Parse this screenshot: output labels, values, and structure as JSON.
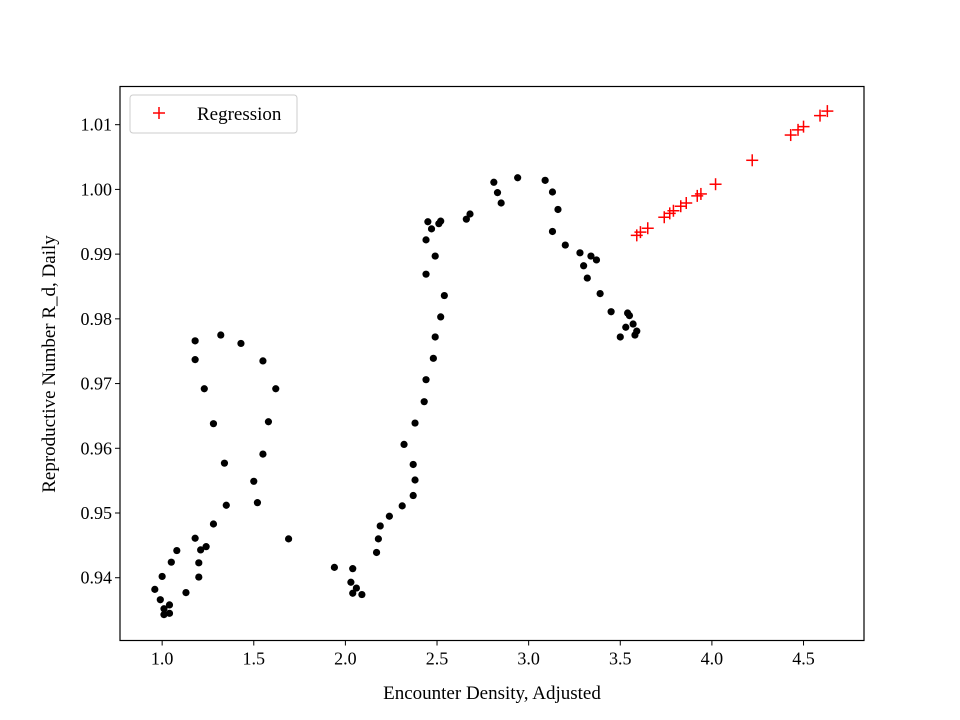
{
  "chart_data": {
    "type": "scatter",
    "xlabel": "Encounter Density, Adjusted",
    "ylabel": "Reproductive Number R_d, Daily",
    "xlim": [
      0.77,
      4.83
    ],
    "ylim": [
      0.9303,
      1.0159
    ],
    "x_ticks": [
      1.0,
      1.5,
      2.0,
      2.5,
      3.0,
      3.5,
      4.0,
      4.5
    ],
    "x_tick_labels": [
      "1.0",
      "1.5",
      "2.0",
      "2.5",
      "3.0",
      "3.5",
      "4.0",
      "4.5"
    ],
    "y_ticks": [
      0.94,
      0.95,
      0.96,
      0.97,
      0.98,
      0.99,
      1.0,
      1.01
    ],
    "y_tick_labels": [
      "0.94",
      "0.95",
      "0.96",
      "0.97",
      "0.98",
      "0.99",
      "1.00",
      "1.01"
    ],
    "grid": false,
    "legend_position": "top-left",
    "series": [
      {
        "marker": "dot",
        "color": "#000000",
        "points": [
          [
            0.96,
            0.9382
          ],
          [
            1.0,
            0.9402
          ],
          [
            0.99,
            0.9366
          ],
          [
            1.01,
            0.9352
          ],
          [
            1.01,
            0.9343
          ],
          [
            1.04,
            0.9345
          ],
          [
            1.04,
            0.9358
          ],
          [
            1.05,
            0.9424
          ],
          [
            1.08,
            0.9442
          ],
          [
            1.13,
            0.9377
          ],
          [
            1.18,
            0.9461
          ],
          [
            1.2,
            0.9401
          ],
          [
            1.2,
            0.9423
          ],
          [
            1.21,
            0.9443
          ],
          [
            1.24,
            0.9448
          ],
          [
            1.28,
            0.9483
          ],
          [
            1.34,
            0.9577
          ],
          [
            1.35,
            0.9512
          ],
          [
            1.28,
            0.9638
          ],
          [
            1.23,
            0.9692
          ],
          [
            1.18,
            0.9737
          ],
          [
            1.18,
            0.9766
          ],
          [
            1.32,
            0.9775
          ],
          [
            1.43,
            0.9762
          ],
          [
            1.5,
            0.9549
          ],
          [
            1.52,
            0.9516
          ],
          [
            1.55,
            0.9591
          ],
          [
            1.55,
            0.9735
          ],
          [
            1.58,
            0.9641
          ],
          [
            1.62,
            0.9692
          ],
          [
            1.69,
            0.946
          ],
          [
            1.94,
            0.9416
          ],
          [
            2.03,
            0.9393
          ],
          [
            2.04,
            0.9414
          ],
          [
            2.04,
            0.9376
          ],
          [
            2.06,
            0.9384
          ],
          [
            2.09,
            0.9374
          ],
          [
            2.17,
            0.9439
          ],
          [
            2.18,
            0.946
          ],
          [
            2.19,
            0.948
          ],
          [
            2.24,
            0.9495
          ],
          [
            2.31,
            0.9511
          ],
          [
            2.32,
            0.9606
          ],
          [
            2.37,
            0.9527
          ],
          [
            2.37,
            0.9575
          ],
          [
            2.38,
            0.9551
          ],
          [
            2.38,
            0.9639
          ],
          [
            2.43,
            0.9672
          ],
          [
            2.44,
            0.9706
          ],
          [
            2.48,
            0.9739
          ],
          [
            2.49,
            0.9772
          ],
          [
            2.52,
            0.9803
          ],
          [
            2.54,
            0.9836
          ],
          [
            2.44,
            0.9869
          ],
          [
            2.49,
            0.9897
          ],
          [
            2.44,
            0.9922
          ],
          [
            2.47,
            0.9939
          ],
          [
            2.45,
            0.995
          ],
          [
            2.51,
            0.9947
          ],
          [
            2.52,
            0.9951
          ],
          [
            2.66,
            0.9954
          ],
          [
            2.68,
            0.9962
          ],
          [
            2.81,
            1.0011
          ],
          [
            2.83,
            0.9995
          ],
          [
            2.85,
            0.9979
          ],
          [
            2.94,
            1.0018
          ],
          [
            3.09,
            1.0014
          ],
          [
            3.13,
            0.9996
          ],
          [
            3.16,
            0.9969
          ],
          [
            3.13,
            0.9935
          ],
          [
            3.2,
            0.9914
          ],
          [
            3.28,
            0.9902
          ],
          [
            3.3,
            0.9882
          ],
          [
            3.34,
            0.9897
          ],
          [
            3.32,
            0.9863
          ],
          [
            3.37,
            0.9891
          ],
          [
            3.39,
            0.9839
          ],
          [
            3.45,
            0.9811
          ],
          [
            3.54,
            0.9809
          ],
          [
            3.55,
            0.9805
          ],
          [
            3.57,
            0.9792
          ],
          [
            3.53,
            0.9787
          ],
          [
            3.5,
            0.9772
          ],
          [
            3.58,
            0.9775
          ],
          [
            3.59,
            0.9781
          ]
        ]
      },
      {
        "name": "Regression",
        "marker": "plus",
        "color": "#ff0000",
        "points": [
          [
            3.59,
            0.9929
          ],
          [
            3.61,
            0.9934
          ],
          [
            3.65,
            0.994
          ],
          [
            3.74,
            0.9957
          ],
          [
            3.77,
            0.9963
          ],
          [
            3.79,
            0.9967
          ],
          [
            3.83,
            0.9974
          ],
          [
            3.86,
            0.9979
          ],
          [
            3.92,
            0.999
          ],
          [
            3.94,
            0.9993
          ],
          [
            4.02,
            1.0008
          ],
          [
            4.22,
            1.0045
          ],
          [
            4.43,
            1.0084
          ],
          [
            4.47,
            1.0092
          ],
          [
            4.5,
            1.0097
          ],
          [
            4.59,
            1.0114
          ],
          [
            4.63,
            1.0121
          ]
        ]
      }
    ]
  }
}
